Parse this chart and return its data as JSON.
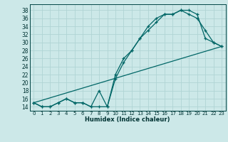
{
  "xlabel": "Humidex (Indice chaleur)",
  "bg_color": "#cce8e8",
  "grid_color": "#b0d4d4",
  "line_color": "#006666",
  "xlim": [
    -0.5,
    23.5
  ],
  "ylim": [
    13.0,
    39.5
  ],
  "xticks": [
    0,
    1,
    2,
    3,
    4,
    5,
    6,
    7,
    8,
    9,
    10,
    11,
    12,
    13,
    14,
    15,
    16,
    17,
    18,
    19,
    20,
    21,
    22,
    23
  ],
  "yticks": [
    14,
    16,
    18,
    20,
    22,
    24,
    26,
    28,
    30,
    32,
    34,
    36,
    38
  ],
  "line1_x": [
    0,
    1,
    2,
    3,
    4,
    5,
    6,
    7,
    8,
    9,
    10,
    11,
    12,
    13,
    14,
    15,
    16,
    17,
    18,
    19,
    20,
    21,
    22,
    23
  ],
  "line1_y": [
    15,
    14,
    14,
    15,
    16,
    15,
    15,
    14,
    14,
    14,
    21,
    25,
    28,
    31,
    33,
    35,
    37,
    37,
    38,
    38,
    37,
    31,
    30,
    29
  ],
  "line2_x": [
    0,
    1,
    2,
    3,
    4,
    5,
    6,
    7,
    8,
    9,
    10,
    11,
    12,
    13,
    14,
    15,
    16,
    17,
    18,
    19,
    20,
    21,
    22,
    23
  ],
  "line2_y": [
    15,
    14,
    14,
    15,
    16,
    15,
    15,
    14,
    18,
    14,
    22,
    26,
    28,
    31,
    34,
    36,
    37,
    37,
    38,
    37,
    36,
    33,
    30,
    29
  ],
  "line3_x": [
    0,
    23
  ],
  "line3_y": [
    15,
    29
  ]
}
